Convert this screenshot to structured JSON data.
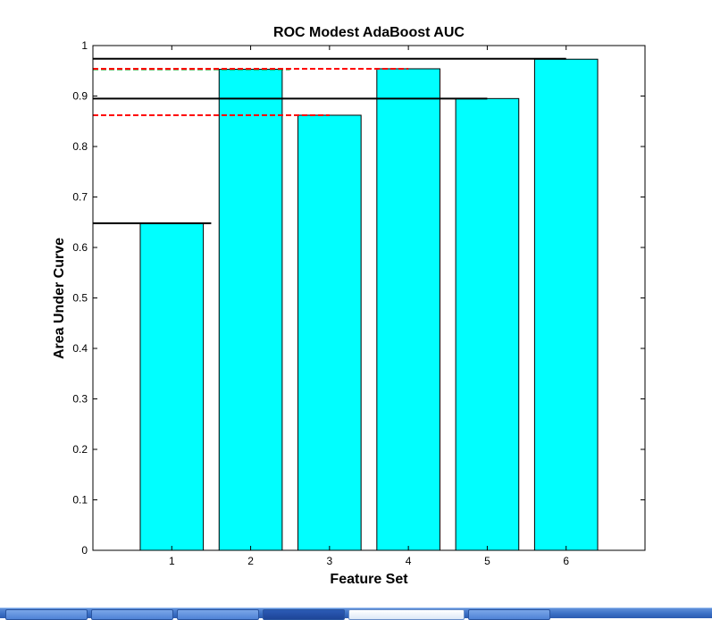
{
  "chart_data": {
    "type": "bar",
    "title": "ROC Modest AdaBoost AUC",
    "xlabel": "Feature Set",
    "ylabel": "Area Under Curve",
    "categories": [
      "1",
      "2",
      "3",
      "4",
      "5",
      "6"
    ],
    "values": [
      0.648,
      0.953,
      0.862,
      0.954,
      0.895,
      0.973
    ],
    "ylim": [
      0,
      1
    ],
    "xlim": [
      0,
      7
    ],
    "yticks": [
      "0",
      "0.1",
      "0.2",
      "0.3",
      "0.4",
      "0.5",
      "0.6",
      "0.7",
      "0.8",
      "0.9",
      "1"
    ],
    "grid": false,
    "legend": "none",
    "bar_color": "#00ffff",
    "reference_lines": [
      {
        "y": 0.648,
        "x_end": 1.5,
        "style": "solid",
        "color": "#000000"
      },
      {
        "y": 0.974,
        "x_end": 6.0,
        "style": "solid",
        "color": "#000000"
      },
      {
        "y": 0.895,
        "x_end": 5.0,
        "style": "solid",
        "color": "#000000"
      },
      {
        "y": 0.953,
        "x_end": 2.5,
        "style": "dashed",
        "color": "#008000"
      },
      {
        "y": 0.954,
        "x_end": 4.0,
        "style": "dashed",
        "color": "#ff0000"
      },
      {
        "y": 0.862,
        "x_end": 3.0,
        "style": "dashed",
        "color": "#ff0000"
      }
    ]
  },
  "taskbar": {
    "buttons": [
      "",
      "",
      "",
      "",
      "",
      "",
      "",
      ""
    ]
  }
}
